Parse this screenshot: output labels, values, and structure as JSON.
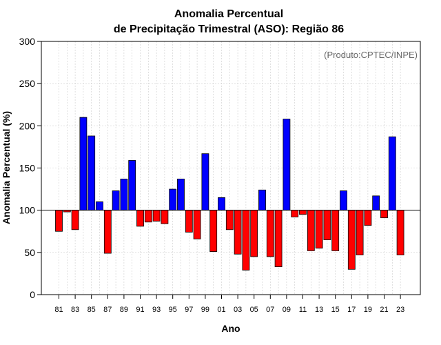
{
  "chart_data": {
    "type": "bar",
    "title": "Anomalia Percentual",
    "subtitle": "de Precipitação Trimestral (ASO): Região 86",
    "xlabel": "Ano",
    "ylabel": "Anomalia Percentual (%)",
    "annotation": "(Produto:CPTEC/INPE)",
    "ylim": [
      0,
      300
    ],
    "yticks": [
      0,
      50,
      100,
      150,
      200,
      250,
      300
    ],
    "baseline": 100,
    "grid": true,
    "colors": {
      "above": "#0000ff",
      "below": "#ff0000",
      "stroke": "#000000",
      "grid": "#cccccc"
    },
    "categories": [
      "81",
      "82",
      "83",
      "84",
      "85",
      "86",
      "87",
      "88",
      "89",
      "90",
      "91",
      "92",
      "93",
      "94",
      "95",
      "96",
      "97",
      "98",
      "99",
      "00",
      "01",
      "02",
      "03",
      "04",
      "05",
      "06",
      "07",
      "08",
      "09",
      "10",
      "11",
      "12",
      "13",
      "14",
      "15",
      "16",
      "17",
      "18",
      "19",
      "20",
      "21",
      "22",
      "23"
    ],
    "xtick_labels": [
      "81",
      "83",
      "85",
      "87",
      "89",
      "91",
      "93",
      "95",
      "97",
      "99",
      "01",
      "03",
      "05",
      "07",
      "09",
      "11",
      "13",
      "15",
      "17",
      "19",
      "21",
      "23"
    ],
    "values": [
      75,
      98,
      77,
      210,
      188,
      110,
      49,
      123,
      137,
      159,
      81,
      86,
      87,
      84,
      125,
      137,
      74,
      66,
      167,
      51,
      115,
      77,
      48,
      29,
      45,
      124,
      45,
      33,
      208,
      92,
      95,
      52,
      55,
      65,
      52,
      123,
      30,
      47,
      82,
      117,
      91,
      187,
      47
    ]
  }
}
